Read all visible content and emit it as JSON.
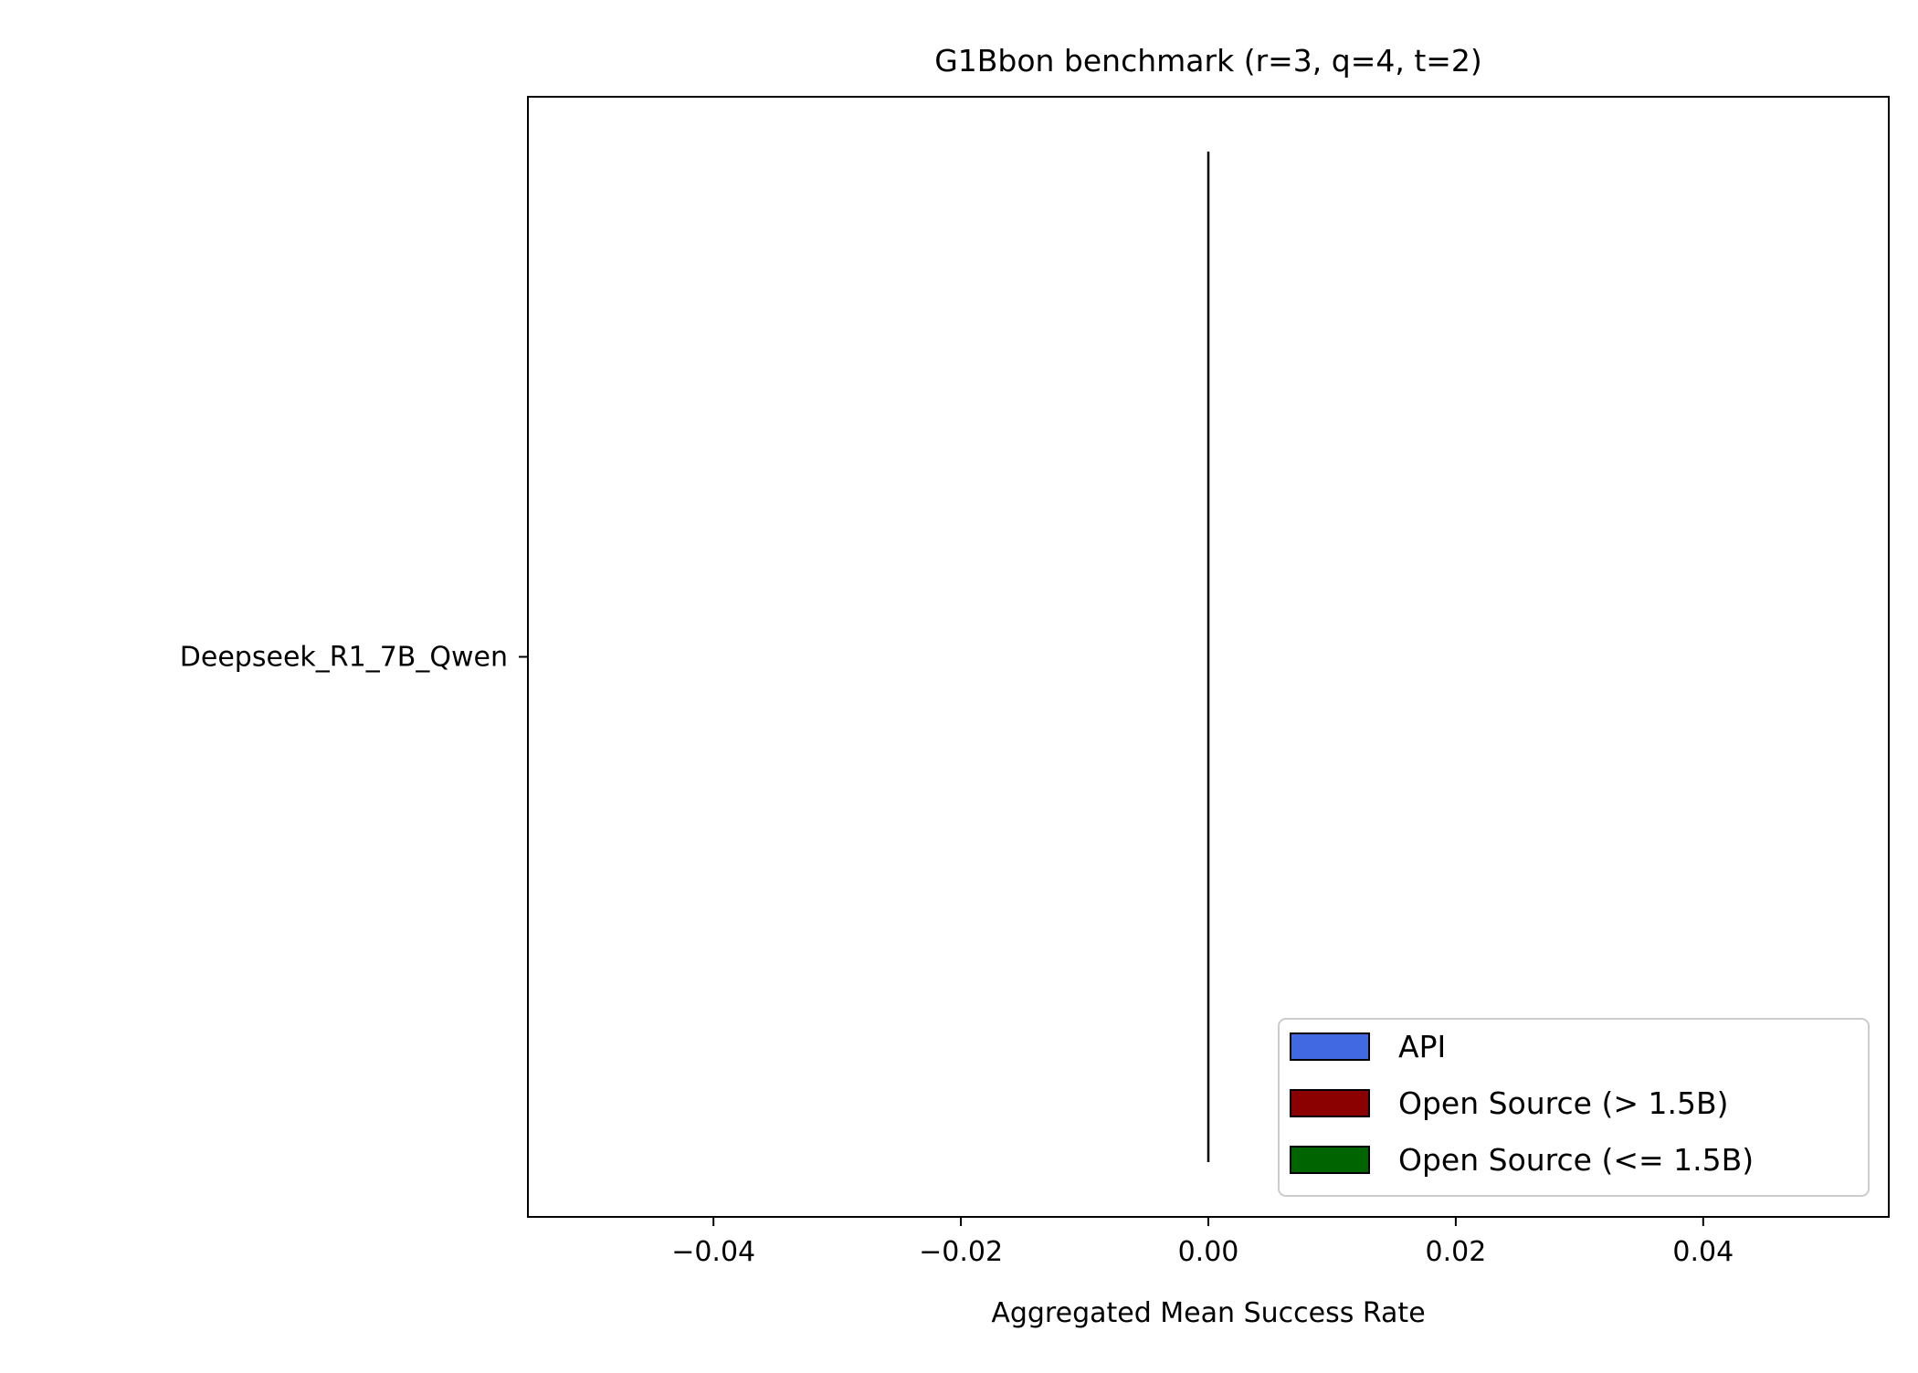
{
  "chart_data": {
    "type": "bar",
    "orientation": "horizontal",
    "title": "G1Bbon benchmark (r=3, q=4, t=2)",
    "xlabel": "Aggregated Mean Success Rate",
    "ylabel": "",
    "categories": [
      "Deepseek_R1_7B_Qwen"
    ],
    "values": [
      0.0
    ],
    "bar_colors": [
      "#8b0000"
    ],
    "xlim": [
      -0.055,
      0.055
    ],
    "xticks": [
      -0.04,
      -0.02,
      0.0,
      0.02,
      0.04
    ],
    "xtick_labels": [
      "−0.04",
      "−0.02",
      "0.00",
      "0.02",
      "0.04"
    ],
    "grid": false,
    "legend_position": "lower-right",
    "legend": [
      {
        "label": "API",
        "color": "#4169e1"
      },
      {
        "label": "Open Source (> 1.5B)",
        "color": "#8b0000"
      },
      {
        "label": "Open Source (<= 1.5B)",
        "color": "#006400"
      }
    ]
  }
}
